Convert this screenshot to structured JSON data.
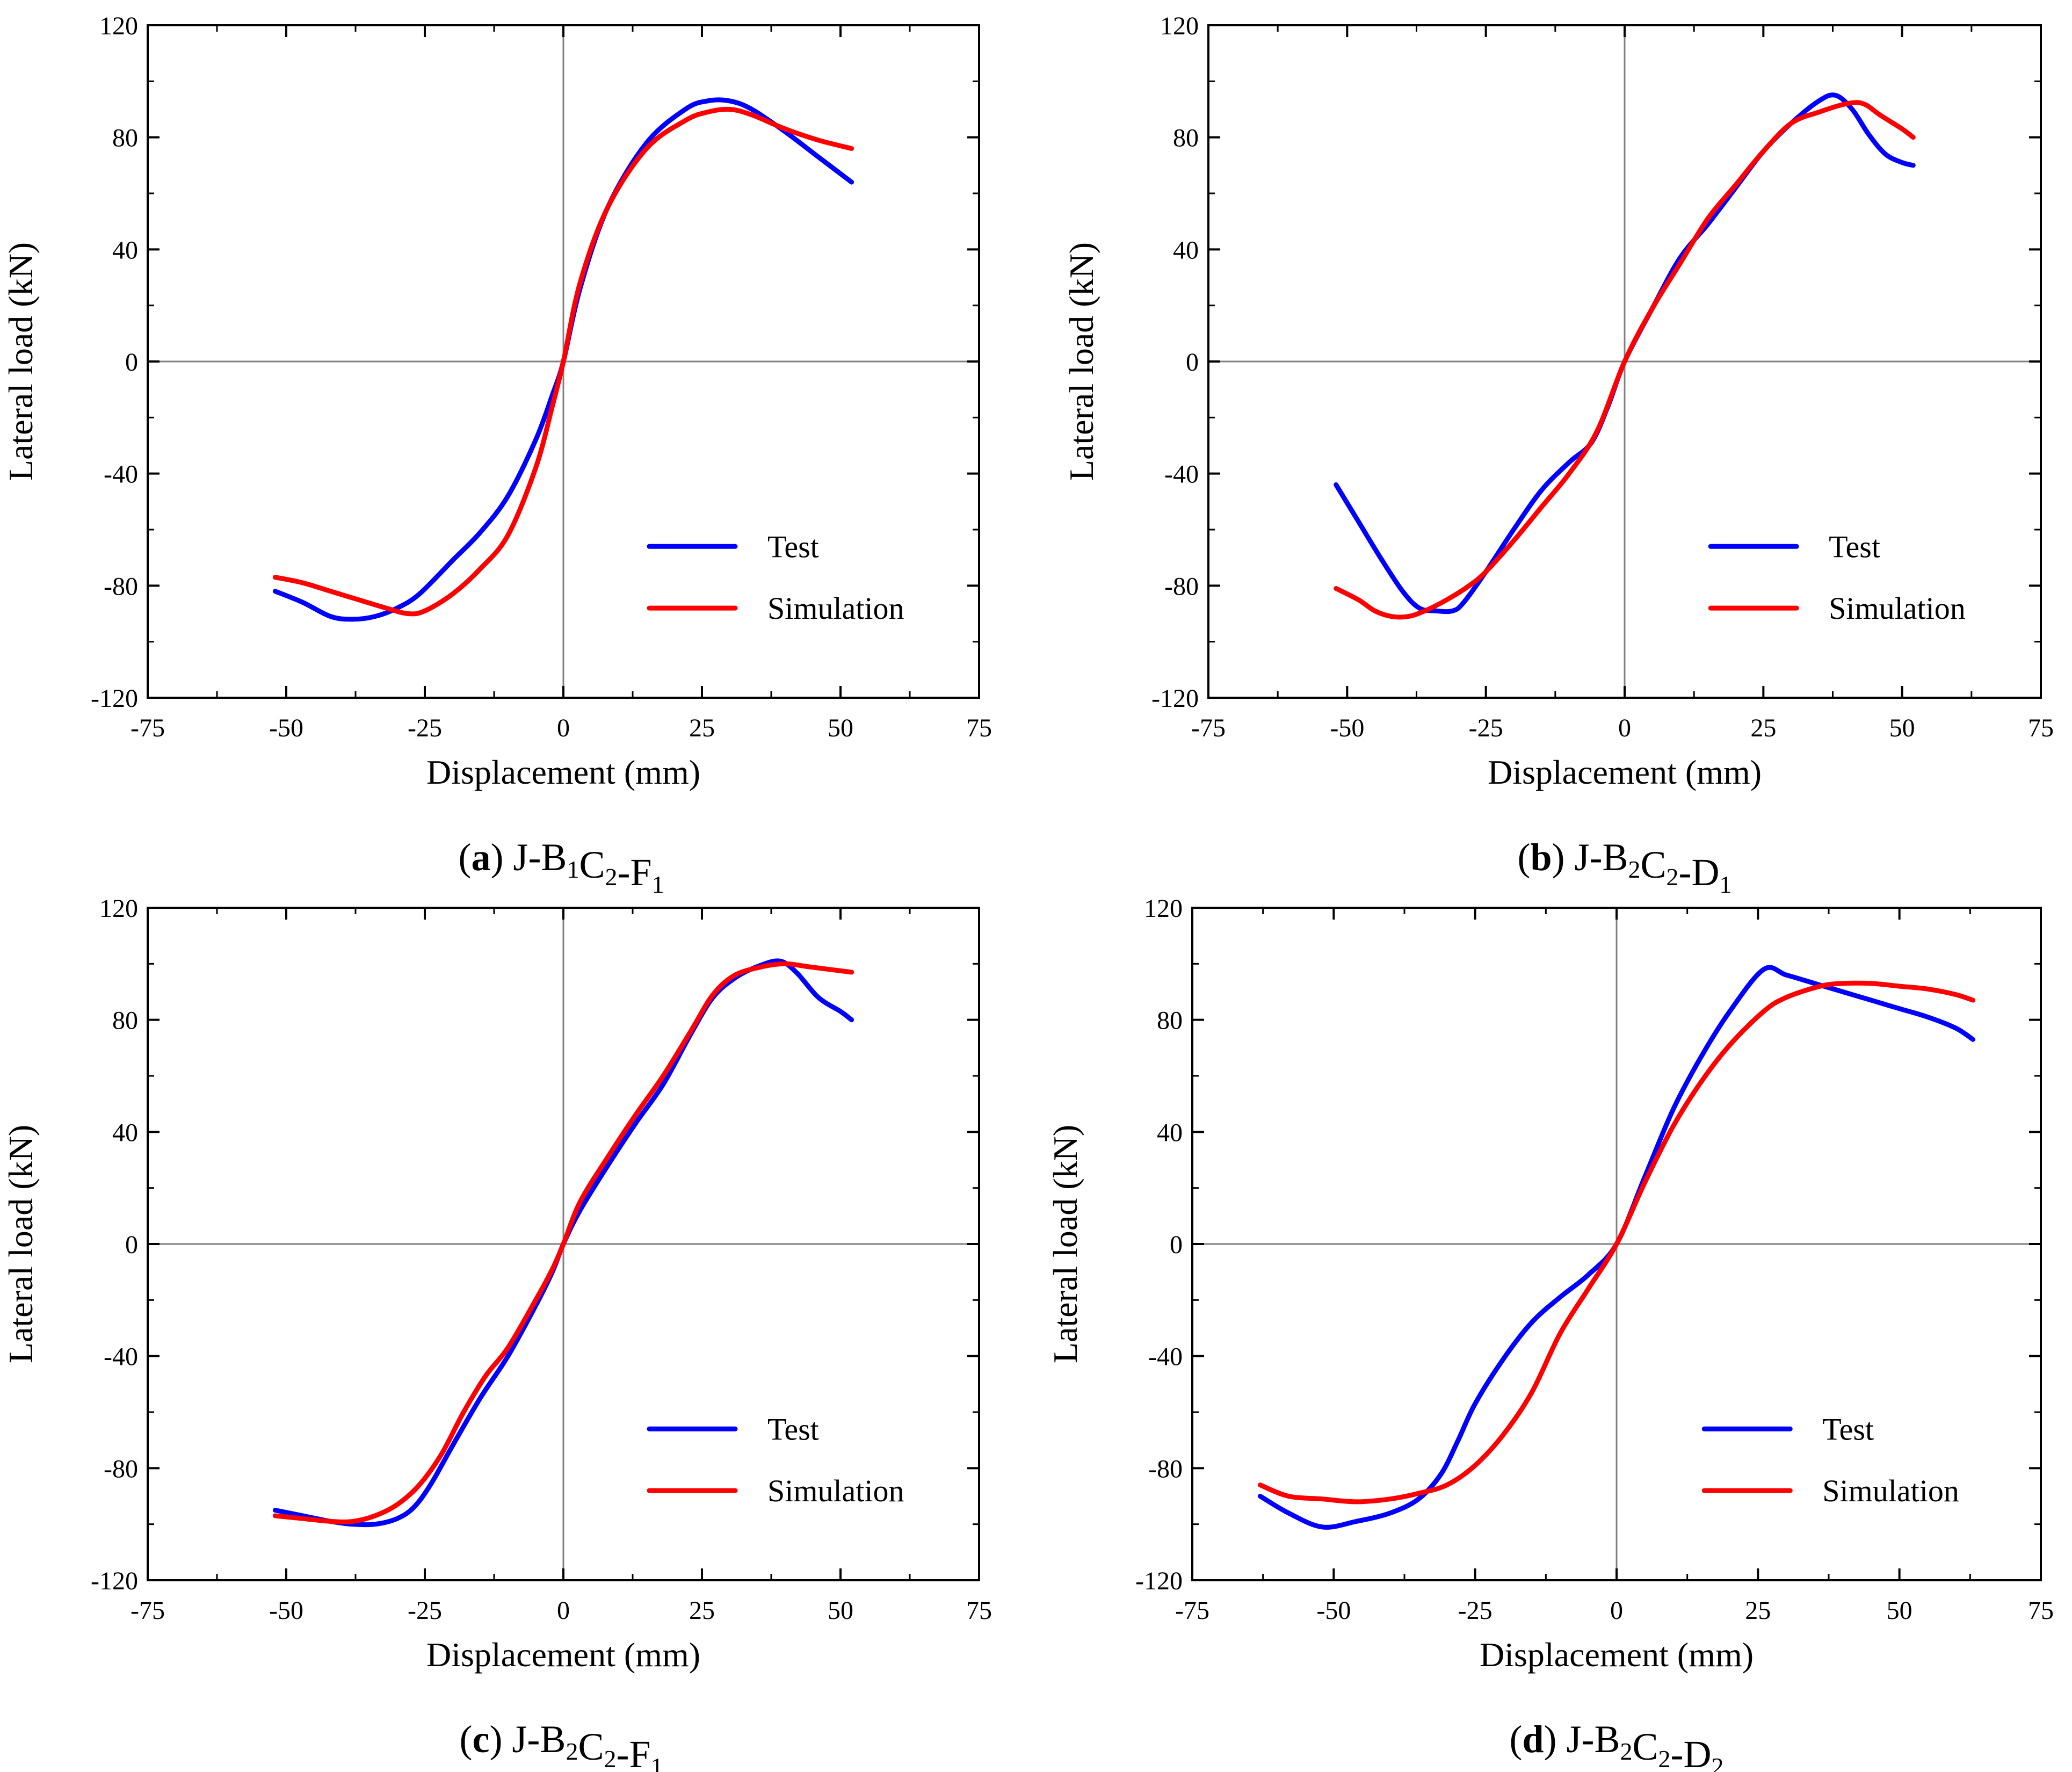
{
  "colors": {
    "test": "#0000ff",
    "simulation": "#ff0000",
    "axis": "#000000",
    "zero_line": "#808080"
  },
  "chart_data": [
    {
      "type": "line",
      "caption": {
        "letter": "a",
        "specimen": "J-B",
        "b_sub": "1",
        "mid": "C",
        "c_sub": "2",
        "suffix": "-F",
        "last_sub": "1"
      },
      "xlabel": "Displacement (mm)",
      "ylabel": "Lateral load (kN)",
      "xlim": [
        -75,
        75
      ],
      "ylim": [
        -120,
        120
      ],
      "xticks": [
        -75,
        -50,
        -25,
        0,
        25,
        50,
        75
      ],
      "yticks": [
        -120,
        -80,
        -40,
        0,
        40,
        80,
        120
      ],
      "legend": {
        "position": "lower-right",
        "labels": [
          "Test",
          "Simulation"
        ]
      },
      "series": [
        {
          "name": "Test",
          "color": "test",
          "x": [
            -52,
            -47,
            -42,
            -38,
            -34,
            -30,
            -26,
            -20,
            -15,
            -10,
            -5,
            -2,
            0,
            3,
            8,
            15,
            22,
            26,
            30,
            34,
            40,
            46,
            52
          ],
          "y": [
            -82,
            -86,
            -91,
            -92,
            -91,
            -88,
            -83,
            -71,
            -61,
            -48,
            -28,
            -12,
            0,
            26,
            55,
            78,
            90,
            93,
            93,
            90,
            82,
            73,
            64
          ]
        },
        {
          "name": "Simulation",
          "color": "simulation",
          "x": [
            -52,
            -47,
            -42,
            -37,
            -32,
            -28,
            -25,
            -20,
            -15,
            -10,
            -5,
            -2,
            0,
            3,
            8,
            15,
            22,
            26,
            30,
            34,
            40,
            46,
            52
          ],
          "y": [
            -77,
            -79,
            -82,
            -85,
            -88,
            -90,
            -89,
            -83,
            -74,
            -62,
            -38,
            -16,
            0,
            28,
            55,
            76,
            86,
            89,
            90,
            88,
            83,
            79,
            76
          ]
        }
      ]
    },
    {
      "type": "line",
      "caption": {
        "letter": "b",
        "specimen": "J-B",
        "b_sub": "2",
        "mid": "C",
        "c_sub": "2",
        "suffix": "-D",
        "last_sub": "1"
      },
      "xlabel": "Displacement (mm)",
      "ylabel": "Lateral load (kN)",
      "xlim": [
        -75,
        75
      ],
      "ylim": [
        -120,
        120
      ],
      "xticks": [
        -75,
        -50,
        -25,
        0,
        25,
        50,
        75
      ],
      "yticks": [
        -120,
        -80,
        -40,
        0,
        40,
        80,
        120
      ],
      "legend": {
        "position": "lower-right",
        "labels": [
          "Test",
          "Simulation"
        ]
      },
      "series": [
        {
          "name": "Test",
          "color": "test",
          "x": [
            -52,
            -48,
            -44,
            -40,
            -37,
            -34,
            -31,
            -29,
            -25,
            -20,
            -15,
            -10,
            -6,
            -3,
            0,
            5,
            10,
            15,
            20,
            25,
            30,
            35,
            38,
            41,
            44,
            47,
            50,
            52
          ],
          "y": [
            -44,
            -57,
            -70,
            -82,
            -88,
            -89,
            -89,
            -86,
            -75,
            -60,
            -46,
            -36,
            -29,
            -16,
            0,
            19,
            37,
            49,
            62,
            75,
            85,
            93,
            95,
            90,
            81,
            74,
            71,
            70
          ]
        },
        {
          "name": "Simulation",
          "color": "simulation",
          "x": [
            -52,
            -48,
            -45,
            -42,
            -39,
            -36,
            -32,
            -28,
            -25,
            -20,
            -15,
            -10,
            -5,
            0,
            5,
            10,
            15,
            20,
            25,
            30,
            35,
            40,
            43,
            46,
            50,
            52
          ],
          "y": [
            -81,
            -85,
            -89,
            -91,
            -91,
            -89,
            -85,
            -80,
            -75,
            -64,
            -52,
            -40,
            -25,
            0,
            19,
            35,
            51,
            63,
            75,
            85,
            89,
            92,
            92,
            88,
            83,
            80
          ]
        }
      ]
    },
    {
      "type": "line",
      "caption": {
        "letter": "c",
        "specimen": "J-B",
        "b_sub": "2",
        "mid": "C",
        "c_sub": "2",
        "suffix": "-F",
        "last_sub": "1"
      },
      "xlabel": "Displacement (mm)",
      "ylabel": "Lateral load (kN)",
      "xlim": [
        -75,
        75
      ],
      "ylim": [
        -120,
        120
      ],
      "xticks": [
        -75,
        -50,
        -25,
        0,
        25,
        50,
        75
      ],
      "yticks": [
        -120,
        -80,
        -40,
        0,
        40,
        80,
        120
      ],
      "legend": {
        "position": "lower-right",
        "labels": [
          "Test",
          "Simulation"
        ]
      },
      "series": [
        {
          "name": "Test",
          "color": "test",
          "x": [
            -52,
            -47,
            -42,
            -38,
            -34,
            -30,
            -27,
            -24,
            -20,
            -15,
            -10,
            -5,
            -2,
            0,
            3,
            8,
            13,
            18,
            23,
            27,
            31,
            35,
            39,
            42,
            46,
            50,
            52
          ],
          "y": [
            -95,
            -97,
            -99,
            -100,
            -100,
            -98,
            -94,
            -86,
            -72,
            -55,
            -40,
            -22,
            -10,
            0,
            12,
            28,
            43,
            57,
            75,
            88,
            95,
            99,
            101,
            97,
            88,
            83,
            80
          ]
        },
        {
          "name": "Simulation",
          "color": "simulation",
          "x": [
            -52,
            -47,
            -42,
            -38,
            -34,
            -30,
            -26,
            -22,
            -18,
            -14,
            -10,
            -5,
            -2,
            0,
            3,
            8,
            13,
            18,
            23,
            27,
            31,
            36,
            40,
            44,
            48,
            52
          ],
          "y": [
            -97,
            -98,
            -99,
            -99,
            -97,
            -93,
            -86,
            -75,
            -60,
            -47,
            -37,
            -20,
            -9,
            0,
            15,
            31,
            46,
            60,
            76,
            89,
            96,
            99,
            100,
            99,
            98,
            97
          ]
        }
      ]
    },
    {
      "type": "line",
      "caption": {
        "letter": "d",
        "specimen": "J-B",
        "b_sub": "2",
        "mid": "C",
        "c_sub": "2",
        "suffix": "-D",
        "last_sub": "2"
      },
      "xlabel": "Displacement (mm)",
      "ylabel": "Lateral load (kN)",
      "xlim": [
        -75,
        75
      ],
      "ylim": [
        -120,
        120
      ],
      "xticks": [
        -75,
        -50,
        -25,
        0,
        25,
        50,
        75
      ],
      "yticks": [
        -120,
        -80,
        -40,
        0,
        40,
        80,
        120
      ],
      "legend": {
        "position": "lower-right",
        "labels": [
          "Test",
          "Simulation"
        ]
      },
      "series": [
        {
          "name": "Test",
          "color": "test",
          "x": [
            -63,
            -58,
            -52,
            -46,
            -40,
            -35,
            -31,
            -28,
            -25,
            -20,
            -15,
            -10,
            -5,
            0,
            5,
            10,
            15,
            20,
            26,
            30,
            35,
            40,
            45,
            50,
            55,
            60,
            63
          ],
          "y": [
            -90,
            -96,
            -101,
            -99,
            -96,
            -91,
            -82,
            -70,
            -57,
            -41,
            -28,
            -19,
            -11,
            0,
            24,
            48,
            67,
            83,
            98,
            96,
            93,
            90,
            87,
            84,
            81,
            77,
            73
          ]
        },
        {
          "name": "Simulation",
          "color": "simulation",
          "x": [
            -63,
            -58,
            -52,
            -46,
            -40,
            -35,
            -30,
            -25,
            -20,
            -15,
            -10,
            -5,
            0,
            5,
            10,
            15,
            20,
            26,
            30,
            36,
            40,
            45,
            50,
            55,
            60,
            63
          ],
          "y": [
            -86,
            -90,
            -91,
            -92,
            -91,
            -89,
            -86,
            -79,
            -68,
            -53,
            -32,
            -16,
            0,
            22,
            42,
            58,
            71,
            83,
            88,
            92,
            93,
            93,
            92,
            91,
            89,
            87
          ]
        }
      ]
    }
  ]
}
